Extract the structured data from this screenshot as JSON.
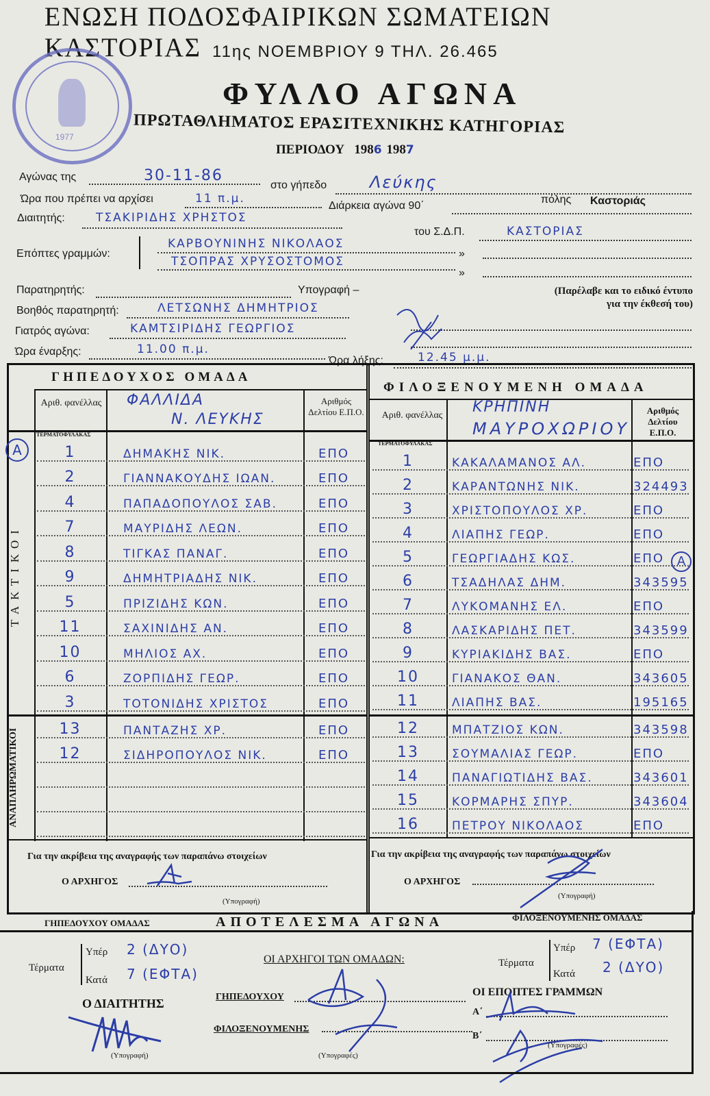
{
  "header": {
    "union": "ΕΝΩΣΗ ΠΟΔΟΣΦΑΙΡΙΚΩΝ ΣΩΜΑΤΕΙΩΝ ΚΑΣΤΟΡΙΑΣ",
    "address": "11ης ΝΟΕΜΒΡΙΟΥ 9 ΤΗΛ. 26.465",
    "title": "ΦΥΛΛΟ ΑΓΩΝΑ",
    "subtitle": "ΠΡΩΤΑΘΛΗΜΑΤΟΣ ΕΡΑΣΙΤΕΧΝΙΚΗΣ ΚΑΤΗΓΟΡΙΑΣ",
    "period_label": "ΠΕΡΙΟΔΟΥ",
    "period_from": "198",
    "period_from_hw": "6",
    "period_to": "198",
    "period_to_hw": "7",
    "stamp_text": "ΕΝΩΣΗ ΠΟΔΟΣΦΑΙΡΙΚΩΝ ΣΩΜΑΤΕΙΩΝ ΚΑΣΤΟΡΙΑΣ",
    "stamp_year": "1977"
  },
  "form": {
    "match_label": "Αγώνας της",
    "match_date": "30-11-86",
    "ground_label": "στο γήπεδο",
    "ground": "Λεύκης",
    "start_label": "Ώρα που πρέπει να αρχίσει",
    "start": "11 π.μ.",
    "duration_label": "Διάρκεια αγώνα 90΄",
    "city_label": "πόλης",
    "city": "Καστοριάς",
    "referee_label": "Διαιτητής:",
    "referee": "ΤΣΑΚΙΡΙΔΗΣ ΧΡΗΣΤΟΣ",
    "sdp_label": "του Σ.Δ.Π.",
    "sdp": "ΚΑΣΤΟΡΙΑΣ",
    "linesmen_label": "Επόπτες γραμμών:",
    "linesman1": "ΚΑΡΒΟΥΝΙΝΗΣ ΝΙΚΟΛΑΟΣ",
    "linesman2": "ΤΣΟΠΡΑΣ ΧΡΥΣΟΣΤΟΜΟΣ",
    "ditto": "»",
    "observer_label": "Παρατηρητής:",
    "signature_label": "Υπογραφή –",
    "observer_note": "(Παρέλαβε και το ειδικό έντυπο για την έκθεσή του)",
    "asst_observer_label": "Βοηθός παρατηρητή:",
    "asst_observer": "ΛΕΤΣΩΝΗΣ ΔΗΜΗΤΡΙΟΣ",
    "doctor_label": "Γιατρός αγώνα:",
    "doctor": "ΚΑΜΤΣΙΡΙΔΗΣ ΓΕΩΡΓΙΟΣ",
    "kickoff_label": "Ώρα έναρξης:",
    "kickoff": "11.00 π.μ.",
    "end_label": "Ώρα λήξης:",
    "end": "12.45 μ.μ."
  },
  "table": {
    "regular_label": "ΤΑΚΤΙΚΟΙ",
    "subs_label": "ΑΝΑΠΛΗΡΩΜΑΤΙΚΟΙ",
    "goalkeeper_label": "ΤΕΡΜΑΤΟΦΥΛΑΚΑΣ",
    "jersey_header": "Αριθ. φανέλλας",
    "card_header": "Αριθμός Δελτίου Ε.Π.Ο.",
    "home": {
      "heading": "ΓΗΠΕΔΟΥΧΟΣ ΟΜΑΔΑ",
      "team_line1": "ΦΑΛΛΙΔΑ",
      "team_line2": "Ν. ΛΕΥΚΗΣ",
      "captain_mark": "A",
      "starters": [
        [
          "1",
          "ΔΗΜΑΚΗΣ ΝΙΚ.",
          "ΕΠΟ"
        ],
        [
          "2",
          "ΓΙΑΝΝΑΚΟΥΔΗΣ ΙΩΑΝ.",
          "ΕΠΟ"
        ],
        [
          "4",
          "ΠΑΠΑΔΟΠΟΥΛΟΣ ΣΑΒ.",
          "ΕΠΟ"
        ],
        [
          "7",
          "ΜΑΥΡΙΔΗΣ ΛΕΩΝ.",
          "ΕΠΟ"
        ],
        [
          "8",
          "ΤΙΓΚΑΣ ΠΑΝΑΓ.",
          "ΕΠΟ"
        ],
        [
          "9",
          "ΔΗΜΗΤΡΙΑΔΗΣ ΝΙΚ.",
          "ΕΠΟ"
        ],
        [
          "5",
          "ΠΡΙΖΙΔΗΣ ΚΩΝ.",
          "ΕΠΟ"
        ],
        [
          "11",
          "ΣΑΧΙΝΙΔΗΣ ΑΝ.",
          "ΕΠΟ"
        ],
        [
          "10",
          "ΜΗΛΙΟΣ ΑΧ.",
          "ΕΠΟ"
        ],
        [
          "6",
          "ΖΟΡΠΙΔΗΣ ΓΕΩΡ.",
          "ΕΠΟ"
        ],
        [
          "3",
          "ΤΟΤΟΝΙΔΗΣ ΧΡΙΣΤΟΣ",
          "ΕΠΟ"
        ]
      ],
      "subs": [
        [
          "13",
          "ΠΑΝΤΑΖΗΣ ΧΡ.",
          "ΕΠΟ"
        ],
        [
          "12",
          "ΣΙΔΗΡΟΠΟΥΛΟΣ ΝΙΚ.",
          "ΕΠΟ"
        ],
        [
          "",
          "",
          ""
        ],
        [
          "",
          "",
          ""
        ],
        [
          "",
          "",
          ""
        ]
      ]
    },
    "away": {
      "heading": "ΦΙΛΟΞΕΝΟΥΜΕΝΗ ΟΜΑΔΑ",
      "team_line1": "ΚΡΗΠΙΝΗ",
      "team_line2": "ΜΑΥΡΟΧΩΡΙΟΥ",
      "captain_mark": "A",
      "starters": [
        [
          "1",
          "ΚΑΚΑΛΑΜΑΝΟΣ ΑΛ.",
          "ΕΠΟ"
        ],
        [
          "2",
          "ΚΑΡΑΝΤΩΝΗΣ ΝΙΚ.",
          "324493"
        ],
        [
          "3",
          "ΧΡΙΣΤΟΠΟΥΛΟΣ ΧΡ.",
          "ΕΠΟ"
        ],
        [
          "4",
          "ΛΙΑΠΗΣ ΓΕΩΡ.",
          "ΕΠΟ"
        ],
        [
          "5",
          "ΓΕΩΡΓΙΑΔΗΣ ΚΩΣ.",
          "ΕΠΟ"
        ],
        [
          "6",
          "ΤΣΑΔΗΛΑΣ ΔΗΜ.",
          "343595"
        ],
        [
          "7",
          "ΛΥΚΟΜΑΝΗΣ ΕΛ.",
          "ΕΠΟ"
        ],
        [
          "8",
          "ΛΑΣΚΑΡΙΔΗΣ ΠΕΤ.",
          "343599"
        ],
        [
          "9",
          "ΚΥΡΙΑΚΙΔΗΣ ΒΑΣ.",
          "ΕΠΟ"
        ],
        [
          "10",
          "ΓΙΑΝΑΚΟΣ ΘΑΝ.",
          "343605"
        ],
        [
          "11",
          "ΛΙΑΠΗΣ ΒΑΣ.",
          "195165"
        ]
      ],
      "subs": [
        [
          "12",
          "ΜΠΑΤΖΙΟΣ ΚΩΝ.",
          "343598"
        ],
        [
          "13",
          "ΣΟΥΜΑΛΙΑΣ ΓΕΩΡ.",
          "ΕΠΟ"
        ],
        [
          "14",
          "ΠΑΝΑΓΙΩΤΙΔΗΣ ΒΑΣ.",
          "343601"
        ],
        [
          "15",
          "ΚΟΡΜΑΡΗΣ ΣΠΥΡ.",
          "343604"
        ],
        [
          "16",
          "ΠΕΤΡΟΥ ΝΙΚΟΛΑΟΣ",
          "ΕΠΟ"
        ]
      ]
    },
    "accuracy_label": "Για την ακρίβεια της αναγραφής των παραπάνω στοιχείων",
    "captain_label": "Ο ΑΡΧΗΓΟΣ",
    "sig_label": "(Υπογραφή)"
  },
  "result": {
    "home_label": "ΓΗΠΕΔΟΥΧΟΥ ΟΜΑΔΑΣ",
    "title": "ΑΠΟΤΕΛΕΣΜΑ ΑΓΩΝΑ",
    "away_label": "ΦΙΛΟΞΕΝΟΥΜΕΝΗΣ ΟΜΑΔΑΣ",
    "goals_label": "Τέρματα",
    "for_label": "Υπέρ",
    "against_label": "Κατά",
    "home_for": "2 (ΔΥΟ)",
    "home_against": "7 (ΕΦΤΑ)",
    "away_for": "7 (ΕΦΤΑ)",
    "away_against": "2 (ΔΥΟ)",
    "captains_label": "ΟΙ ΑΡΧΗΓΟΙ ΤΩΝ ΟΜΑΔΩΝ:",
    "home_cap_label": "ΓΗΠΕΔΟΥΧΟΥ",
    "away_cap_label": "ΦΙΛΟΞΕΝΟΥΜΕΝΗΣ",
    "referee_label": "Ο ΔΙΑΙΤΗΤΗΣ",
    "linesmen_label": "ΟΙ ΕΠΟΠΤΕΣ ΓΡΑΜΜΩΝ",
    "a_label": "Α΄",
    "b_label": "Β΄",
    "sig_single": "(Υπογραφή)",
    "sig_plural": "(Υπογραφές)"
  },
  "colors": {
    "paper": "#e9e9e4",
    "ink": "#161616",
    "pen": "#2b3ea6"
  }
}
